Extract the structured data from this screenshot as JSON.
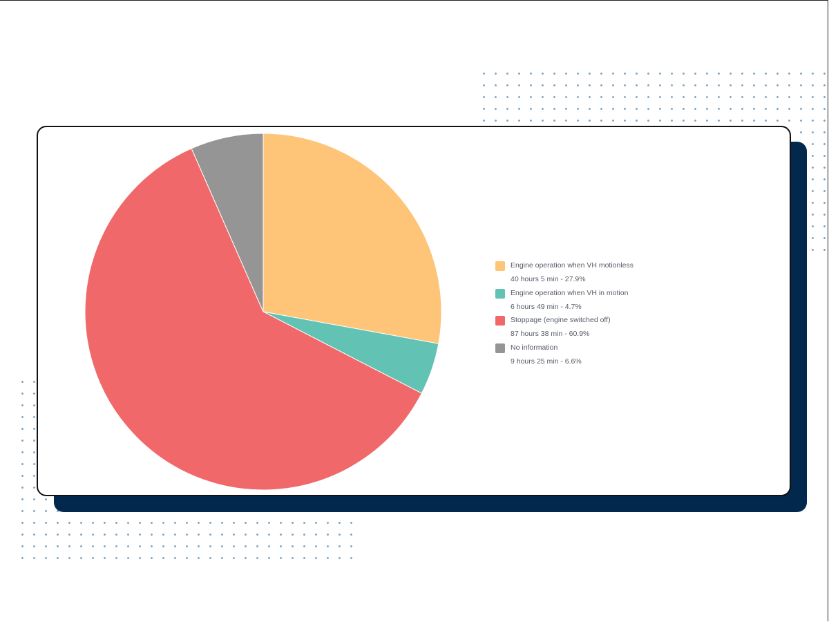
{
  "chart_data": {
    "type": "pie",
    "legend_position": "right",
    "slices": [
      {
        "label": "Engine operation when VH motionless",
        "detail": "40 hours 5 min - 27.9%",
        "value": 27.9,
        "color": "#fec478"
      },
      {
        "label": "Engine operation when VH in motion",
        "detail": "6 hours 49 min - 4.7%",
        "value": 4.7,
        "color": "#62c2b4"
      },
      {
        "label": "Stoppage (engine switched off)",
        "detail": "87 hours 38 min - 60.9%",
        "value": 60.9,
        "color": "#f0686a"
      },
      {
        "label": "No information",
        "detail": "9 hours 25 min - 6.6%",
        "value": 6.6,
        "color": "#959595"
      }
    ]
  }
}
